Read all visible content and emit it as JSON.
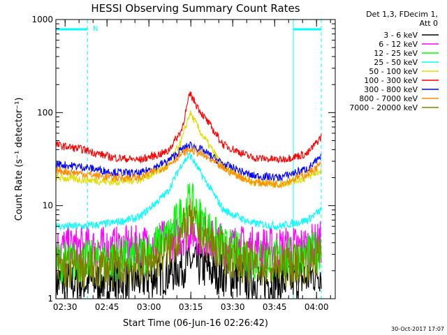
{
  "chart_data": {
    "type": "line",
    "title": "HESSI Observing Summary Count Rates",
    "xlabel": "Start Time (06-Jun-16 02:26:42)",
    "ylabel": "Count Rate (s⁻¹ detector⁻¹)",
    "x_ticks": [
      "02:30",
      "02:45",
      "03:00",
      "03:15",
      "03:30",
      "03:45",
      "04:00"
    ],
    "x_tick_minutes": [
      3.3,
      18.3,
      33.3,
      48.3,
      63.3,
      78.3,
      93.3
    ],
    "xlim_minutes": [
      0,
      100
    ],
    "y_scale": "log",
    "y_ticks": [
      "1",
      "10",
      "100",
      "1000"
    ],
    "y_tick_values": [
      1,
      10,
      100,
      1000
    ],
    "ylim": [
      1,
      1000
    ],
    "legend_header": [
      "Det 1,3, FDecim 1,",
      "Att 0"
    ],
    "legend_position": "right",
    "night_intervals_minutes": [
      [
        0,
        11.3
      ],
      [
        85,
        95
      ]
    ],
    "annotation_N": "N",
    "timestamp": "30-Oct-2017 17:07",
    "series": [
      {
        "name": "3 - 6 keV",
        "color": "#000000",
        "x_minutes": [
          0,
          10,
          20,
          30,
          40,
          45,
          48,
          52,
          60,
          70,
          80,
          90,
          95
        ],
        "values": [
          1.5,
          1.5,
          1.6,
          1.6,
          1.9,
          2.2,
          2.5,
          2.2,
          1.8,
          1.6,
          1.5,
          1.7,
          2.0
        ]
      },
      {
        "name": "6 - 12 keV",
        "color": "#ff00ff",
        "x_minutes": [
          0,
          10,
          20,
          30,
          40,
          45,
          48,
          52,
          60,
          70,
          80,
          90,
          95
        ],
        "values": [
          3.5,
          3.5,
          3.5,
          3.6,
          4.2,
          4.8,
          5.5,
          4.8,
          3.8,
          3.5,
          3.5,
          3.6,
          4.0
        ]
      },
      {
        "name": "12 - 25 keV",
        "color": "#00ff00",
        "x_minutes": [
          0,
          10,
          20,
          30,
          40,
          45,
          48,
          52,
          60,
          70,
          80,
          90,
          95
        ],
        "values": [
          2.5,
          2.5,
          2.6,
          2.8,
          4.5,
          8,
          11,
          7,
          3.5,
          2.7,
          2.6,
          2.8,
          3.5
        ]
      },
      {
        "name": "25 - 50 keV",
        "color": "#00ffff",
        "x_minutes": [
          0,
          10,
          20,
          30,
          40,
          45,
          48,
          52,
          60,
          70,
          80,
          90,
          95
        ],
        "values": [
          6,
          6,
          6.5,
          7.5,
          14,
          28,
          35,
          22,
          9,
          6.5,
          6,
          7,
          9
        ]
      },
      {
        "name": "50 - 100 keV",
        "color": "#dddd00",
        "x_minutes": [
          0,
          10,
          20,
          30,
          40,
          45,
          48,
          52,
          60,
          70,
          80,
          90,
          95
        ],
        "values": [
          20,
          19,
          18,
          19,
          26,
          50,
          100,
          60,
          26,
          18,
          17,
          20,
          24
        ]
      },
      {
        "name": "100 - 300 keV",
        "color": "#ff0000",
        "x_minutes": [
          0,
          10,
          20,
          30,
          40,
          45,
          48,
          52,
          60,
          70,
          80,
          90,
          95
        ],
        "values": [
          45,
          40,
          33,
          31,
          38,
          65,
          160,
          100,
          45,
          33,
          31,
          36,
          55
        ]
      },
      {
        "name": "300 - 800 keV",
        "color": "#0000ff",
        "x_minutes": [
          0,
          10,
          20,
          30,
          40,
          45,
          48,
          52,
          60,
          70,
          80,
          90,
          95
        ],
        "values": [
          28,
          26,
          23,
          22,
          30,
          40,
          45,
          40,
          28,
          21,
          20,
          25,
          33
        ]
      },
      {
        "name": "800 - 7000 keV",
        "color": "#ff8c00",
        "x_minutes": [
          0,
          10,
          20,
          30,
          40,
          45,
          48,
          52,
          60,
          70,
          80,
          90,
          95
        ],
        "values": [
          24,
          22,
          20,
          20,
          27,
          36,
          40,
          36,
          25,
          18,
          17,
          22,
          28
        ]
      },
      {
        "name": "7000 - 20000 keV",
        "color": "#808000",
        "x_minutes": [
          0,
          10,
          20,
          30,
          40,
          45,
          48,
          52,
          60,
          70,
          80,
          90,
          95
        ],
        "values": [
          2.2,
          2.1,
          2.2,
          2.3,
          3.2,
          5,
          7,
          5,
          3,
          2.4,
          2.2,
          2.5,
          3.0
        ]
      }
    ]
  }
}
